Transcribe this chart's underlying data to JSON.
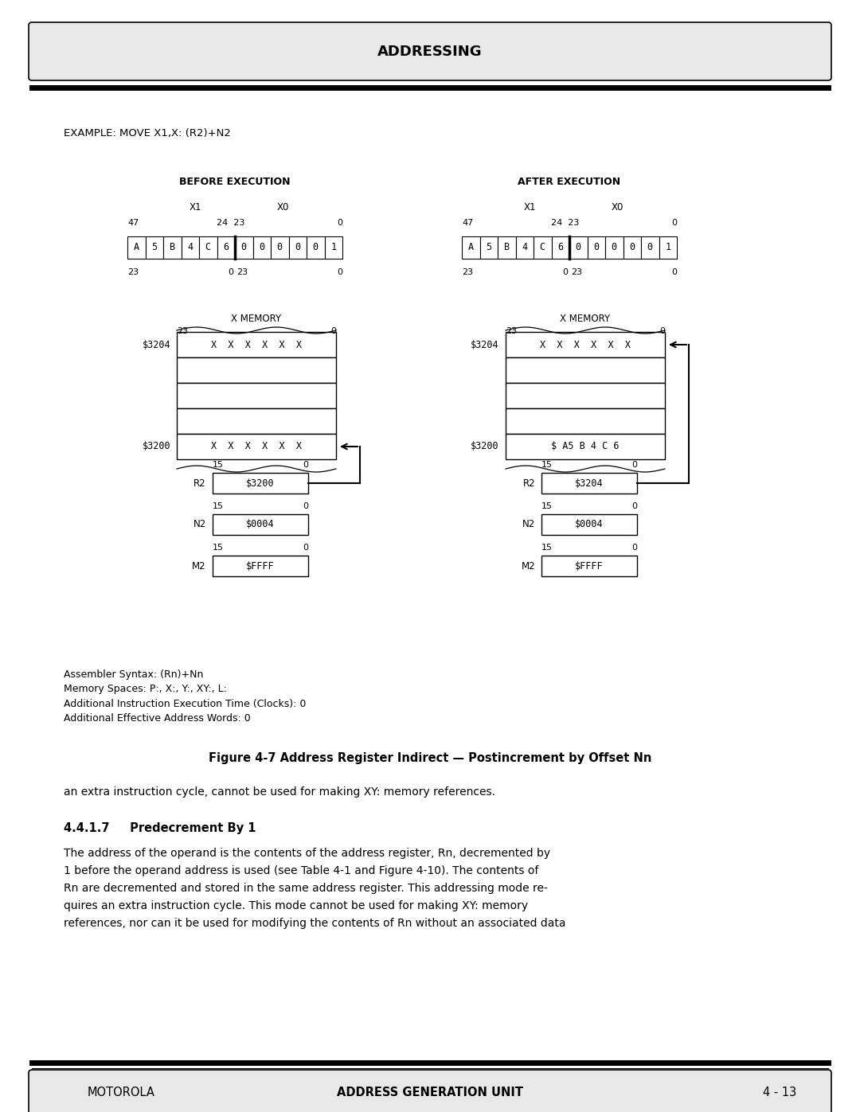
{
  "title_box_text": "ADDRESSING",
  "example_text": "EXAMPLE: MOVE X1,X: (R2)+N2",
  "before_label": "BEFORE EXECUTION",
  "after_label": "AFTER EXECUTION",
  "before_reg_cells": [
    "A",
    "5",
    "B",
    "4",
    "C",
    "6",
    "0",
    "0",
    "0",
    "0",
    "0",
    "1"
  ],
  "after_reg_cells": [
    "A",
    "5",
    "B",
    "4",
    "C",
    "6",
    "0",
    "0",
    "0",
    "0",
    "0",
    "1"
  ],
  "xmem_label": "X MEMORY",
  "before_mem_addr_top": "$3204",
  "before_mem_content_top": "X  X  X  X  X  X",
  "after_mem_addr_top": "$3204",
  "after_mem_content_top": "X  X  X  X  X  X",
  "before_mem_addr_bot": "$3200",
  "before_mem_content_bot": "X  X  X  X  X  X",
  "after_mem_addr_bot": "$3200",
  "after_mem_content_bot": "$ A5 B 4 C 6",
  "before_r2": "$3200",
  "after_r2": "$3204",
  "before_n2": "$0004",
  "after_n2": "$0004",
  "before_m2": "$FFFF",
  "after_m2": "$FFFF",
  "assembler_syntax": "Assembler Syntax: (Rn)+Nn",
  "memory_spaces": "Memory Spaces: P:, X:, Y:, XY:, L:",
  "exec_time": "Additional Instruction Execution Time (Clocks): 0",
  "addr_words": "Additional Effective Address Words: 0",
  "figure_caption": "Figure 4-7 Address Register Indirect — Postincrement by Offset Nn",
  "body_text1": "an extra instruction cycle, cannot be used for making XY: memory references.",
  "section_header": "4.4.1.7     Predecrement By 1",
  "body_lines": [
    "The address of the operand is the contents of the address register, Rn, decremented by",
    "1 before the operand address is used (see Table 4-1 and Figure 4-10). The contents of",
    "Rn are decremented and stored in the same address register. This addressing mode re-",
    "quires an extra instruction cycle. This mode cannot be used for making XY: memory",
    "references, nor can it be used for modifying the contents of Rn without an associated data"
  ],
  "footer_left": "MOTOROLA",
  "footer_center": "ADDRESS GENERATION UNIT",
  "footer_right": "4 - 13",
  "bg_color": "#ffffff",
  "header_bg": "#e8e8e8",
  "footer_bg": "#e8e8e8"
}
